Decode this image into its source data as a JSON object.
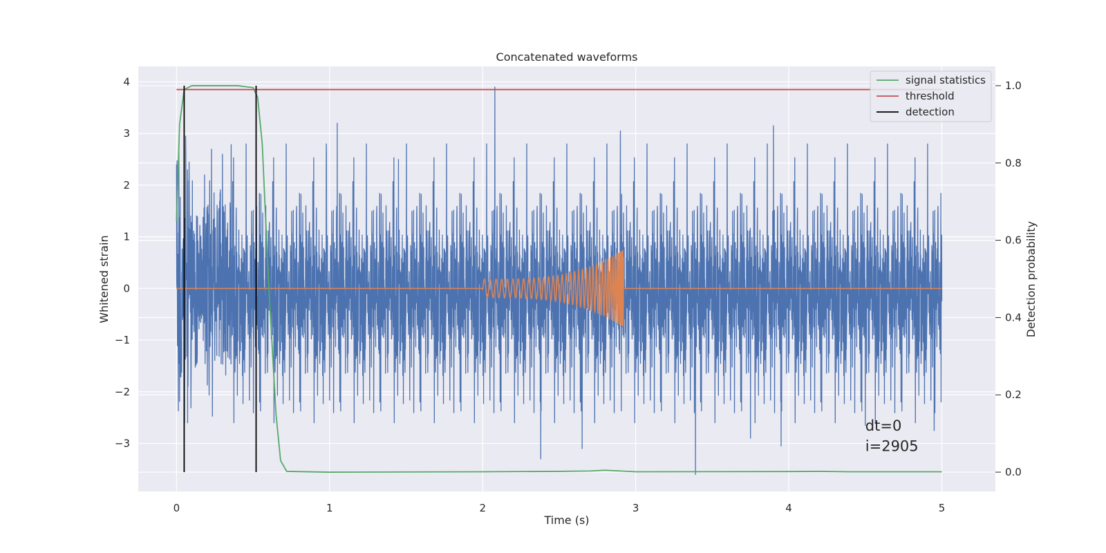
{
  "chart_data": {
    "type": "line",
    "title": "Concatenated waveforms",
    "xlabel": "Time (s)",
    "ylabel_left": "Whitened strain",
    "ylabel_right": "Detection probability",
    "xlim": [
      -0.25,
      5.35
    ],
    "ylim_left": [
      -3.93,
      4.3
    ],
    "ylim_right": [
      -0.05,
      1.05
    ],
    "x_ticks": [
      0,
      1,
      2,
      3,
      4,
      5
    ],
    "x_tick_labels": [
      "0",
      "1",
      "2",
      "3",
      "4",
      "5"
    ],
    "y_left_ticks": [
      4,
      3,
      2,
      1,
      0,
      -1,
      -2,
      -3
    ],
    "y_left_tick_labels": [
      "4",
      "3",
      "2",
      "1",
      "0",
      "−1",
      "−2",
      "−3"
    ],
    "y_right_ticks": [
      1.0,
      0.8,
      0.6,
      0.4,
      0.2,
      0.0
    ],
    "y_right_tick_labels": [
      "1.0",
      "0.8",
      "0.6",
      "0.4",
      "0.2",
      "0.0"
    ],
    "grid": true,
    "legend_position": "top-right",
    "series": [
      {
        "name": "",
        "axis": "left",
        "kind": "noise",
        "color": "#4c72b0",
        "x_range": [
          0,
          5
        ],
        "envelope": [
          -2.6,
          2.8
        ],
        "spikes": [
          {
            "x": 0.0,
            "y": 2.4
          },
          {
            "x": 0.05,
            "y": -2.45
          },
          {
            "x": 0.06,
            "y": 2.95
          },
          {
            "x": 0.3,
            "y": 2.6
          },
          {
            "x": 0.98,
            "y": 2.6
          },
          {
            "x": 1.05,
            "y": 3.2
          },
          {
            "x": 1.45,
            "y": 2.5
          },
          {
            "x": 2.08,
            "y": 3.9
          },
          {
            "x": 2.38,
            "y": -3.3
          },
          {
            "x": 2.65,
            "y": -3.1
          },
          {
            "x": 2.9,
            "y": 3.05
          },
          {
            "x": 3.39,
            "y": -3.6
          },
          {
            "x": 3.75,
            "y": -2.9
          },
          {
            "x": 3.9,
            "y": 3.15
          },
          {
            "x": 3.95,
            "y": -3.05
          },
          {
            "x": 4.5,
            "y": -2.65
          },
          {
            "x": 4.95,
            "y": 2.95
          },
          {
            "x": 4.95,
            "y": -2.75
          }
        ]
      },
      {
        "name": "",
        "axis": "left",
        "kind": "chirp",
        "color": "#dd8452",
        "x_range": [
          0,
          5
        ],
        "chirp_start": 2.0,
        "chirp_end": 2.92,
        "amplitude_start": 0.18,
        "amplitude_peak": 0.75
      },
      {
        "name": "signal statistics",
        "axis": "right",
        "color": "#55a868",
        "x": [
          0.0,
          0.02,
          0.05,
          0.1,
          0.2,
          0.3,
          0.4,
          0.5,
          0.53,
          0.56,
          0.6,
          0.65,
          0.68,
          0.72,
          1.0,
          2.0,
          2.5,
          2.7,
          2.8,
          2.9,
          3.0,
          4.0,
          4.2,
          4.4,
          5.0
        ],
        "y": [
          0.65,
          0.9,
          0.99,
          1.0,
          1.0,
          1.0,
          1.0,
          0.995,
          0.97,
          0.85,
          0.5,
          0.15,
          0.03,
          0.002,
          0.0,
          0.001,
          0.002,
          0.003,
          0.005,
          0.003,
          0.001,
          0.0015,
          0.002,
          0.001,
          0.001
        ]
      },
      {
        "name": "threshold",
        "axis": "right",
        "color": "#c44e52",
        "x": [
          0,
          5
        ],
        "y": [
          0.99,
          0.99
        ]
      },
      {
        "name": "detection",
        "axis": "right",
        "color": "#000000",
        "vertical_lines": [
          {
            "x": 0.05,
            "y0": 0.0,
            "y1": 1.0
          },
          {
            "x": 0.52,
            "y0": 0.0,
            "y1": 1.0
          }
        ]
      }
    ],
    "annotations": [
      {
        "text": "dt=0",
        "x": 4.5,
        "y": -2.75
      },
      {
        "text": "i=2905",
        "x": 4.5,
        "y": -3.15
      }
    ]
  },
  "colors": {
    "figure_bg": "#ffffff",
    "axes_bg": "#eaeaf2",
    "grid": "#ffffff",
    "text": "#262626"
  }
}
